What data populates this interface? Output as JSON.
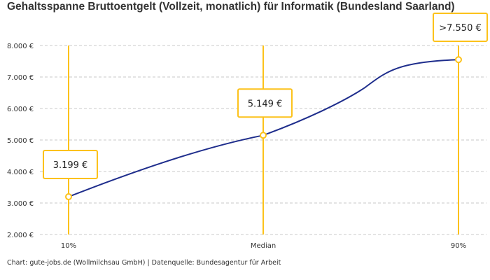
{
  "chart_data": {
    "type": "line",
    "title": "Gehaltsspanne Bruttoentgelt (Vollzeit, monatlich) für Informatik (Bundesland Saarland)",
    "categories": [
      "10%",
      "Median",
      "90%"
    ],
    "values": [
      3199,
      5149,
      7550
    ],
    "data_labels": [
      "3.199 €",
      "5.149 €",
      ">7.550 €"
    ],
    "ylim": [
      2000,
      8000
    ],
    "yticks": [
      2000,
      3000,
      4000,
      5000,
      6000,
      7000,
      8000
    ],
    "ytick_labels": [
      "2.000 €",
      "3.000 €",
      "4.000 €",
      "5.000 €",
      "6.000 €",
      "7.000 €",
      "8.000 €"
    ],
    "xlabel": "",
    "ylabel": "",
    "grid": true,
    "colors": {
      "line": "#1e2d8c",
      "marker": "#fcc21b",
      "grid": "#c8c8c8"
    }
  },
  "footer": "Chart: gute-jobs.de (Wollmilchsau GmbH) | Datenquelle: Bundesagentur für Arbeit"
}
